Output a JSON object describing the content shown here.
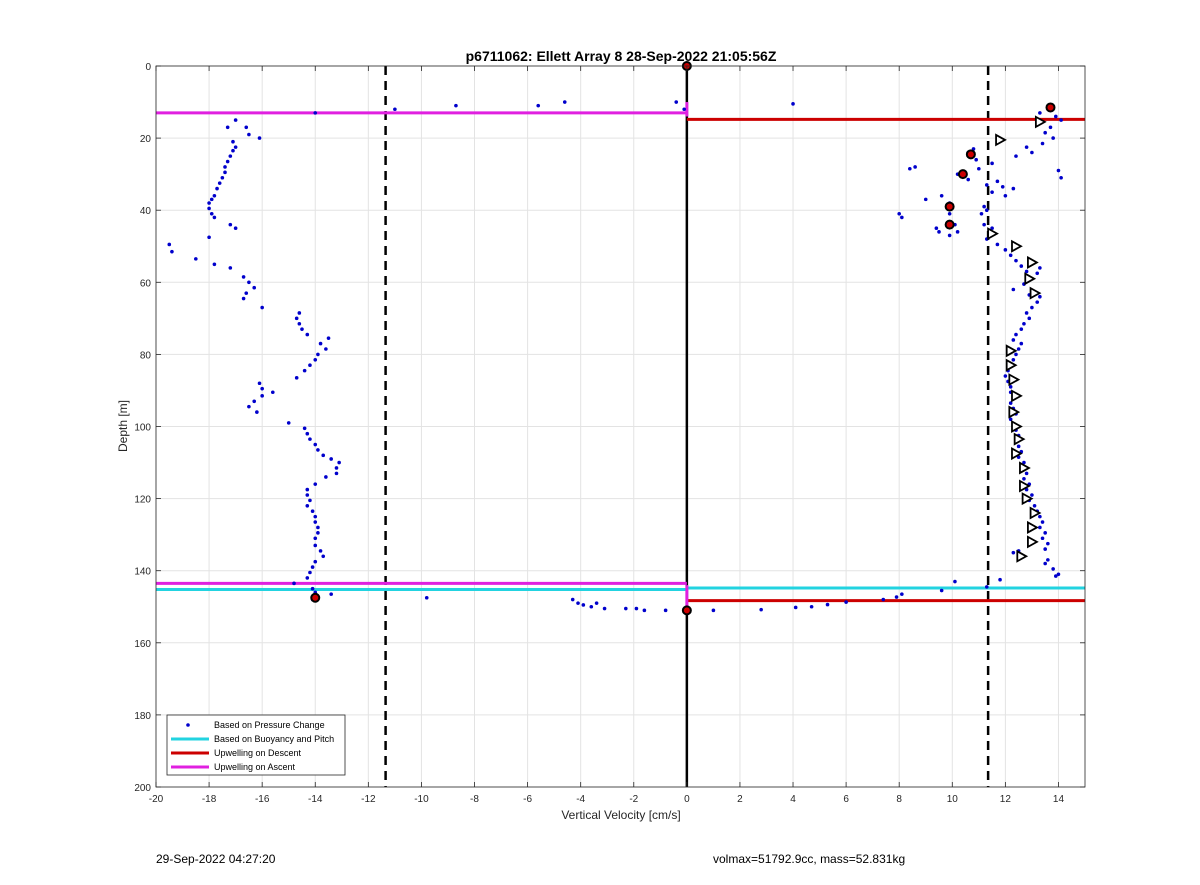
{
  "footer": {
    "left": "29-Sep-2022 04:27:20",
    "right": "volmax=51792.9cc, mass=52.831kg"
  },
  "chart_data": {
    "type": "scatter",
    "title": "p6711062: Ellett Array 8 28-Sep-2022 21:05:56Z",
    "xlabel": "Vertical Velocity [cm/s]",
    "ylabel": "Depth [m]",
    "xlim": [
      -20,
      15
    ],
    "ylim": [
      0,
      200
    ],
    "y_reversed": true,
    "grid": true,
    "xticks": [
      -20,
      -18,
      -16,
      -14,
      -12,
      -10,
      -8,
      -6,
      -4,
      -2,
      0,
      2,
      4,
      6,
      8,
      10,
      12,
      14
    ],
    "yticks": [
      0,
      20,
      40,
      60,
      80,
      100,
      120,
      140,
      160,
      180,
      200
    ],
    "legend_position": "bottom-left",
    "legend": [
      {
        "label": "Based on Pressure Change",
        "style": "dots",
        "color": "#0000cc"
      },
      {
        "label": "Based on Buoyancy and Pitch",
        "style": "line",
        "color": "#22d3e0"
      },
      {
        "label": "Upwelling on Descent",
        "style": "line",
        "color": "#cc0000"
      },
      {
        "label": "Upwelling on Ascent",
        "style": "line",
        "color": "#e020e0"
      }
    ],
    "colors": {
      "pressure": "#0000cc",
      "buoyancy": "#22d3e0",
      "descent": "#cc0000",
      "ascent": "#e020e0",
      "grid": "#e3e3e3"
    },
    "reference_lines": {
      "vertical_solid": 0,
      "vertical_dashed": [
        -11.35,
        11.35
      ]
    },
    "horizontal_lines": [
      {
        "series": "ascent",
        "depth": 13,
        "x_from": -20,
        "x_to": 0
      },
      {
        "series": "descent",
        "depth": 14.8,
        "x_from": 0,
        "x_to": 15
      },
      {
        "series": "ascent",
        "depth": 143.5,
        "x_from": -20,
        "x_to": 0
      },
      {
        "series": "buoyancy",
        "depth": 145.2,
        "x_from": -20,
        "x_to": 0
      },
      {
        "series": "buoyancy",
        "depth": 144.8,
        "x_from": 0,
        "x_to": 15
      },
      {
        "series": "descent",
        "depth": 148.3,
        "x_from": 0,
        "x_to": 15
      }
    ],
    "series": [
      {
        "name": "Based on Pressure Change",
        "points": [
          [
            -14,
            13
          ],
          [
            -17,
            15
          ],
          [
            -17.3,
            17
          ],
          [
            -16.6,
            17
          ],
          [
            -16.5,
            19
          ],
          [
            -16.1,
            20
          ],
          [
            -17.1,
            21
          ],
          [
            -17.0,
            22.5
          ],
          [
            -17.1,
            23.5
          ],
          [
            -17.2,
            25
          ],
          [
            -17.3,
            26.5
          ],
          [
            -17.4,
            28
          ],
          [
            -17.4,
            29.5
          ],
          [
            -17.5,
            31
          ],
          [
            -17.6,
            32.5
          ],
          [
            -17.7,
            34
          ],
          [
            -17.8,
            36
          ],
          [
            -17.9,
            37
          ],
          [
            -18.0,
            38
          ],
          [
            -18.0,
            39.5
          ],
          [
            -17.9,
            41
          ],
          [
            -17.8,
            42
          ],
          [
            -17.2,
            44
          ],
          [
            -17.0,
            45
          ],
          [
            -18.0,
            47.5
          ],
          [
            -19.5,
            49.5
          ],
          [
            -19.4,
            51.5
          ],
          [
            -18.5,
            53.5
          ],
          [
            -17.8,
            55
          ],
          [
            -17.2,
            56
          ],
          [
            -16.7,
            58.5
          ],
          [
            -16.5,
            60
          ],
          [
            -16.3,
            61.5
          ],
          [
            -16.6,
            63
          ],
          [
            -16.7,
            64.5
          ],
          [
            -16.0,
            67
          ],
          [
            -14.6,
            68.5
          ],
          [
            -14.7,
            70
          ],
          [
            -14.6,
            71.5
          ],
          [
            -14.5,
            73
          ],
          [
            -14.3,
            74.5
          ],
          [
            -13.5,
            75.5
          ],
          [
            -13.8,
            77
          ],
          [
            -13.6,
            78.5
          ],
          [
            -13.9,
            80
          ],
          [
            -14.0,
            81.5
          ],
          [
            -14.2,
            83
          ],
          [
            -14.4,
            84.5
          ],
          [
            -14.7,
            86.5
          ],
          [
            -16.1,
            88
          ],
          [
            -16.0,
            89.5
          ],
          [
            -15.6,
            90.5
          ],
          [
            -16.0,
            91.5
          ],
          [
            -16.3,
            93
          ],
          [
            -16.5,
            94.5
          ],
          [
            -16.2,
            96
          ],
          [
            -15.0,
            99
          ],
          [
            -14.4,
            100.5
          ],
          [
            -14.3,
            102
          ],
          [
            -14.2,
            103.5
          ],
          [
            -14.0,
            105
          ],
          [
            -13.9,
            106.5
          ],
          [
            -13.7,
            108
          ],
          [
            -13.4,
            109
          ],
          [
            -13.1,
            110
          ],
          [
            -13.2,
            111.5
          ],
          [
            -13.2,
            113
          ],
          [
            -13.6,
            114
          ],
          [
            -14.0,
            116
          ],
          [
            -14.3,
            117.5
          ],
          [
            -14.3,
            119
          ],
          [
            -14.2,
            120.5
          ],
          [
            -14.3,
            122
          ],
          [
            -14.1,
            123.5
          ],
          [
            -14.0,
            125
          ],
          [
            -14.0,
            126.5
          ],
          [
            -13.9,
            128
          ],
          [
            -13.9,
            129.5
          ],
          [
            -14.0,
            131
          ],
          [
            -14.0,
            133
          ],
          [
            -13.8,
            134.5
          ],
          [
            -13.7,
            136
          ],
          [
            -14.0,
            137.5
          ],
          [
            -14.1,
            139
          ],
          [
            -14.2,
            140.5
          ],
          [
            -14.3,
            142
          ],
          [
            -14.8,
            143.5
          ],
          [
            -14.1,
            145
          ],
          [
            -14.0,
            146
          ],
          [
            -13.4,
            146.5
          ],
          [
            -14.0,
            147.5
          ],
          [
            -14.1,
            148
          ],
          [
            -9.8,
            147.5
          ],
          [
            -11.0,
            12
          ],
          [
            -8.7,
            11
          ],
          [
            -5.6,
            11
          ],
          [
            -4.6,
            10
          ],
          [
            -0.4,
            10
          ],
          [
            -0.1,
            12
          ],
          [
            4.0,
            10.5
          ],
          [
            -4.3,
            148
          ],
          [
            -4.1,
            149
          ],
          [
            -3.9,
            149.5
          ],
          [
            -3.6,
            150
          ],
          [
            -3.4,
            149
          ],
          [
            -3.1,
            150.5
          ],
          [
            -2.3,
            150.5
          ],
          [
            -1.9,
            150.5
          ],
          [
            -1.6,
            151
          ],
          [
            -0.8,
            151
          ],
          [
            0.0,
            151
          ],
          [
            1.0,
            151
          ],
          [
            2.8,
            150.8
          ],
          [
            4.1,
            150.2
          ],
          [
            4.7,
            150
          ],
          [
            5.3,
            149.4
          ],
          [
            6.0,
            148.7
          ],
          [
            7.4,
            148
          ],
          [
            7.9,
            147.3
          ],
          [
            8.1,
            146.5
          ],
          [
            9.6,
            145.5
          ],
          [
            10.1,
            143
          ],
          [
            11.3,
            144.5
          ],
          [
            11.8,
            142.5
          ],
          [
            13.6,
            11.5
          ],
          [
            13.3,
            13
          ],
          [
            13.9,
            14
          ],
          [
            14.1,
            15
          ],
          [
            13.7,
            17
          ],
          [
            13.5,
            18.5
          ],
          [
            13.8,
            20
          ],
          [
            13.4,
            21.5
          ],
          [
            12.8,
            22.5
          ],
          [
            13.0,
            24
          ],
          [
            12.4,
            25
          ],
          [
            10.8,
            23
          ],
          [
            10.6,
            24
          ],
          [
            10.9,
            26
          ],
          [
            11.5,
            27
          ],
          [
            11.0,
            28.5
          ],
          [
            8.6,
            28
          ],
          [
            8.4,
            28.5
          ],
          [
            10.2,
            30
          ],
          [
            10.6,
            31.5
          ],
          [
            11.7,
            32
          ],
          [
            11.3,
            33
          ],
          [
            11.9,
            33.5
          ],
          [
            11.5,
            35
          ],
          [
            12.0,
            36
          ],
          [
            12.3,
            34
          ],
          [
            14.0,
            29
          ],
          [
            14.1,
            31
          ],
          [
            9.0,
            37
          ],
          [
            9.6,
            36
          ],
          [
            9.9,
            38
          ],
          [
            9.9,
            41
          ],
          [
            11.2,
            39
          ],
          [
            11.3,
            40
          ],
          [
            11.1,
            41
          ],
          [
            8.0,
            41
          ],
          [
            8.1,
            42
          ],
          [
            9.4,
            45
          ],
          [
            9.5,
            46
          ],
          [
            10.1,
            44
          ],
          [
            10.2,
            46
          ],
          [
            9.9,
            47
          ],
          [
            11.2,
            44
          ],
          [
            11.5,
            45
          ],
          [
            11.4,
            47
          ],
          [
            11.3,
            48
          ],
          [
            11.7,
            49.5
          ],
          [
            12.0,
            51
          ],
          [
            12.2,
            52.5
          ],
          [
            12.4,
            54
          ],
          [
            12.6,
            55.5
          ],
          [
            12.8,
            57
          ],
          [
            13.3,
            56
          ],
          [
            13.2,
            57.5
          ],
          [
            13.0,
            59
          ],
          [
            12.7,
            60.5
          ],
          [
            12.3,
            62
          ],
          [
            12.9,
            63.5
          ],
          [
            13.3,
            64
          ],
          [
            13.2,
            65.5
          ],
          [
            13.0,
            67
          ],
          [
            12.8,
            68.5
          ],
          [
            12.9,
            70
          ],
          [
            12.7,
            71.5
          ],
          [
            12.6,
            73
          ],
          [
            12.4,
            74.5
          ],
          [
            12.3,
            76
          ],
          [
            12.6,
            77
          ],
          [
            12.5,
            78.5
          ],
          [
            12.4,
            80
          ],
          [
            12.3,
            81.5
          ],
          [
            12.2,
            83
          ],
          [
            12.1,
            84.5
          ],
          [
            12.0,
            86
          ],
          [
            12.1,
            87.5
          ],
          [
            12.2,
            89
          ],
          [
            12.2,
            90.5
          ],
          [
            12.3,
            92
          ],
          [
            12.2,
            93.5
          ],
          [
            12.3,
            95
          ],
          [
            12.4,
            96.5
          ],
          [
            12.2,
            98
          ],
          [
            12.3,
            99.5
          ],
          [
            12.4,
            101
          ],
          [
            12.5,
            102.5
          ],
          [
            12.4,
            104
          ],
          [
            12.5,
            105.5
          ],
          [
            12.6,
            107
          ],
          [
            12.5,
            108.5
          ],
          [
            12.7,
            110
          ],
          [
            12.6,
            111.5
          ],
          [
            12.8,
            113
          ],
          [
            12.7,
            114.5
          ],
          [
            12.9,
            116
          ],
          [
            12.8,
            117.5
          ],
          [
            13.0,
            119
          ],
          [
            12.9,
            120.5
          ],
          [
            13.1,
            122
          ],
          [
            13.2,
            123.5
          ],
          [
            13.3,
            125
          ],
          [
            13.4,
            126.5
          ],
          [
            13.3,
            128
          ],
          [
            13.5,
            129.5
          ],
          [
            13.4,
            131
          ],
          [
            13.6,
            132.5
          ],
          [
            13.5,
            134
          ],
          [
            12.5,
            134.5
          ],
          [
            12.3,
            135
          ],
          [
            13.6,
            137
          ],
          [
            13.5,
            138
          ],
          [
            13.8,
            139.5
          ],
          [
            14.0,
            141
          ],
          [
            13.9,
            141.5
          ]
        ]
      },
      {
        "name": "markers_red_black",
        "points": [
          [
            0,
            0
          ],
          [
            13.7,
            11.5
          ],
          [
            10.7,
            24.5
          ],
          [
            10.4,
            30
          ],
          [
            9.9,
            39
          ],
          [
            9.9,
            44
          ],
          [
            -14,
            147.5
          ],
          [
            0,
            151
          ]
        ]
      },
      {
        "name": "markers_triangles",
        "points": [
          [
            13.3,
            15.5
          ],
          [
            11.8,
            20.5
          ],
          [
            11.5,
            46.5
          ],
          [
            12.4,
            50
          ],
          [
            13.0,
            54.5
          ],
          [
            12.9,
            59
          ],
          [
            13.1,
            63
          ],
          [
            12.2,
            79
          ],
          [
            12.2,
            83
          ],
          [
            12.3,
            87
          ],
          [
            12.4,
            91.5
          ],
          [
            12.3,
            96
          ],
          [
            12.4,
            100
          ],
          [
            12.5,
            103.5
          ],
          [
            12.4,
            107.5
          ],
          [
            12.7,
            111.5
          ],
          [
            12.7,
            116.5
          ],
          [
            12.8,
            120
          ],
          [
            13.1,
            124
          ],
          [
            13.0,
            128
          ],
          [
            13.0,
            132
          ],
          [
            12.6,
            136
          ]
        ]
      }
    ]
  }
}
